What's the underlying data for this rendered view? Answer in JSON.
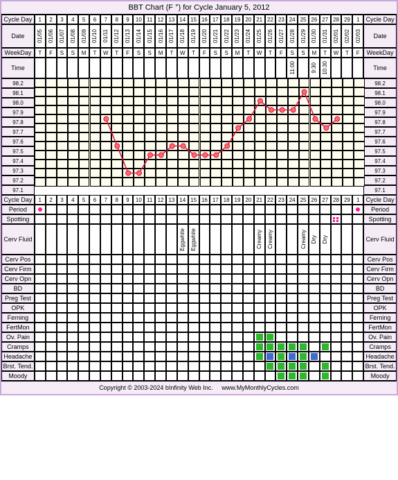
{
  "title": "BBT Chart (F °) for Cycle January 5, 2012",
  "footer_copyright": "Copyright © 2003-2024 bInfinity Web Inc.",
  "footer_url": "www.MyMonthlyCycles.com",
  "cols": 30,
  "cycle_days": [
    "1",
    "2",
    "3",
    "4",
    "5",
    "6",
    "7",
    "8",
    "9",
    "10",
    "11",
    "12",
    "13",
    "14",
    "15",
    "16",
    "17",
    "18",
    "19",
    "20",
    "21",
    "22",
    "23",
    "24",
    "25",
    "26",
    "27",
    "28",
    "29",
    "1"
  ],
  "dates": [
    "01/05",
    "01/06",
    "01/07",
    "01/08",
    "01/09",
    "01/10",
    "01/11",
    "01/12",
    "01/13",
    "01/14",
    "01/15",
    "01/16",
    "01/17",
    "01/18",
    "01/19",
    "01/20",
    "01/21",
    "01/22",
    "01/23",
    "01/24",
    "01/25",
    "01/26",
    "01/27",
    "01/28",
    "01/29",
    "01/30",
    "01/31",
    "02/01",
    "02/02",
    "02/03"
  ],
  "weekdays": [
    "T",
    "F",
    "S",
    "S",
    "M",
    "T",
    "W",
    "T",
    "F",
    "S",
    "S",
    "M",
    "T",
    "W",
    "T",
    "F",
    "S",
    "S",
    "M",
    "T",
    "W",
    "T",
    "F",
    "S",
    "S",
    "M",
    "T",
    "W",
    "T",
    "F"
  ],
  "times": [
    "",
    "",
    "",
    "",
    "",
    "",
    "",
    "",
    "",
    "",
    "",
    "",
    "",
    "",
    "",
    "",
    "",
    "",
    "",
    "",
    "",
    "",
    "",
    "11:00",
    "",
    "9:30",
    "10:30",
    "",
    "",
    ""
  ],
  "temp_labels": [
    "98.2",
    "98.1",
    "98.0",
    "97.9",
    "97.8",
    "97.7",
    "97.6",
    "97.5",
    "97.4",
    "97.3",
    "97.2",
    "97.1"
  ],
  "temp_min": 97.1,
  "temp_max": 98.2,
  "temp_data": [
    {
      "day": 7,
      "t": 97.8
    },
    {
      "day": 8,
      "t": 97.5
    },
    {
      "day": 9,
      "t": 97.2
    },
    {
      "day": 10,
      "t": 97.2
    },
    {
      "day": 11,
      "t": 97.4
    },
    {
      "day": 12,
      "t": 97.4
    },
    {
      "day": 13,
      "t": 97.5
    },
    {
      "day": 14,
      "t": 97.5
    },
    {
      "day": 15,
      "t": 97.4
    },
    {
      "day": 16,
      "t": 97.4
    },
    {
      "day": 17,
      "t": 97.4
    },
    {
      "day": 18,
      "t": 97.5
    },
    {
      "day": 19,
      "t": 97.7
    },
    {
      "day": 20,
      "t": 97.8
    },
    {
      "day": 21,
      "t": 98.0
    },
    {
      "day": 22,
      "t": 97.9
    },
    {
      "day": 23,
      "t": 97.9
    },
    {
      "day": 24,
      "t": 97.9
    },
    {
      "day": 25,
      "t": 98.1
    },
    {
      "day": 26,
      "t": 97.8
    },
    {
      "day": 27,
      "t": 97.7
    },
    {
      "day": 28,
      "t": 97.8
    }
  ],
  "chart_colors": {
    "line": "#dc143c",
    "point_fill": "#ff6b6b",
    "point_stroke": "#dc143c",
    "bg": "#fefdf0",
    "grid": "#000000"
  },
  "row_labels": {
    "cycle_day": "Cycle Day",
    "date": "Date",
    "weekday": "WeekDay",
    "time": "Time",
    "period": "Period",
    "spotting": "Spotting",
    "cerv_fluid": "Cerv Fluid",
    "cerv_pos": "Cerv Pos",
    "cerv_firm": "Cerv Firm",
    "cerv_opn": "Cerv Opn",
    "bd": "BD",
    "preg_test": "Preg Test",
    "opk": "OPK",
    "ferning": "Ferning",
    "fertmon": "FertMon",
    "ov_pain": "Ov. Pain",
    "cramps": "Cramps",
    "headache": "Headache",
    "brst_tend": "Brst. Tend.",
    "moody": "Moody"
  },
  "period_days": [
    1,
    30
  ],
  "spotting_days": [
    28
  ],
  "cerv_fluid": {
    "14": "Eggwhite",
    "15": "Eggwhite",
    "21": "Creamy",
    "22": "Creamy",
    "25": "Creamy",
    "26": "Dry",
    "27": "Dry"
  },
  "ov_pain_days": [
    21,
    22
  ],
  "cramps_days": [
    21,
    22,
    23,
    24,
    25,
    27
  ],
  "headache_days_g": [
    21,
    23,
    25
  ],
  "headache_days_b": [
    22,
    24,
    26
  ],
  "brst_tend_days": [
    22,
    23,
    24,
    25,
    27
  ],
  "moody_days": [
    23,
    24,
    25,
    27
  ],
  "colors": {
    "label_bg": "#f5ecf8",
    "border": "#c8a8d8",
    "chart_bg": "#fefdf0",
    "period": "#ff1493",
    "green": "#2eb82e",
    "blue": "#4169d1"
  }
}
